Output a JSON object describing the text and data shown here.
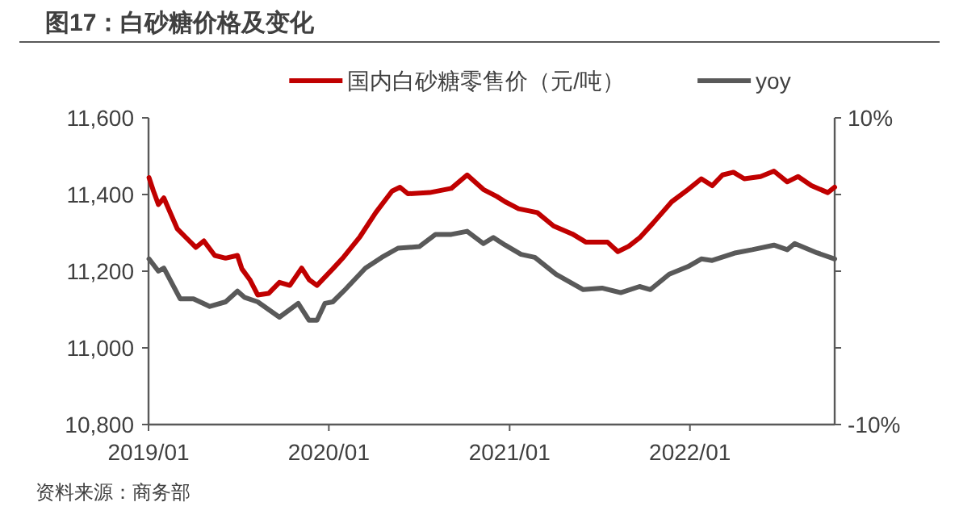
{
  "chart_data": {
    "type": "line",
    "title": "图17：白砂糖价格及变化",
    "annotations": [
      "资料来源：商务部"
    ],
    "legend": "top",
    "xlim": [
      "2019-01-01",
      "2022-10-21"
    ],
    "xticks": [
      {
        "value": "2019-01-01",
        "label": "2019/01"
      },
      {
        "value": "2020-01-01",
        "label": "2020/01"
      },
      {
        "value": "2021-01-01",
        "label": "2021/01"
      },
      {
        "value": "2022-01-01",
        "label": "2022/01"
      }
    ],
    "ylim": [
      10800,
      11600
    ],
    "yticks": [
      {
        "value": 10800,
        "label": "10,800"
      },
      {
        "value": 11000,
        "label": "11,000"
      },
      {
        "value": 11200,
        "label": "11,200"
      },
      {
        "value": 11400,
        "label": "11,400"
      },
      {
        "value": 11600,
        "label": "11,600"
      }
    ],
    "y2lim": [
      -10,
      10
    ],
    "y2ticks": [
      {
        "value": -10,
        "label": "-10%"
      },
      {
        "value": -5,
        "label": null
      },
      {
        "value": 0,
        "label": null
      },
      {
        "value": 5,
        "label": null
      },
      {
        "value": 10,
        "label": "10%"
      }
    ],
    "series": [
      {
        "name": "国内白砂糖零售价（元/吨）",
        "color": "#c00000",
        "x": [
          "2019-01-02",
          "2019-01-11",
          "2019-01-21",
          "2019-02-01",
          "2019-02-28",
          "2019-03-16",
          "2019-04-07",
          "2019-04-23",
          "2019-05-15",
          "2019-06-06",
          "2019-06-30",
          "2019-07-09",
          "2019-07-25",
          "2019-08-10",
          "2019-09-01",
          "2019-09-23",
          "2019-10-14",
          "2019-11-07",
          "2019-11-22",
          "2019-12-08",
          "2020-01-09",
          "2020-01-31",
          "2020-03-04",
          "2020-04-05",
          "2020-05-08",
          "2020-05-24",
          "2020-06-09",
          "2020-07-23",
          "2020-09-05",
          "2020-10-07",
          "2020-11-09",
          "2020-12-06",
          "2020-12-23",
          "2021-01-19",
          "2021-02-26",
          "2021-03-31",
          "2021-05-08",
          "2021-06-04",
          "2021-07-18",
          "2021-08-08",
          "2021-08-30",
          "2021-09-21",
          "2021-10-18",
          "2021-11-25",
          "2021-12-28",
          "2022-01-24",
          "2022-02-15",
          "2022-03-08",
          "2022-03-30",
          "2022-04-21",
          "2022-05-24",
          "2022-06-20",
          "2022-07-17",
          "2022-08-08",
          "2022-09-04",
          "2022-10-07",
          "2022-10-21"
        ],
        "values": [
          11444,
          11409,
          11374,
          11391,
          11311,
          11290,
          11262,
          11279,
          11241,
          11234,
          11241,
          11206,
          11178,
          11138,
          11142,
          11171,
          11163,
          11208,
          11178,
          11163,
          11206,
          11237,
          11290,
          11353,
          11409,
          11419,
          11402,
          11405,
          11416,
          11451,
          11413,
          11395,
          11381,
          11363,
          11353,
          11318,
          11297,
          11276,
          11276,
          11251,
          11265,
          11287,
          11325,
          11381,
          11413,
          11441,
          11423,
          11451,
          11458,
          11441,
          11447,
          11461,
          11433,
          11447,
          11423,
          11405,
          11419
        ]
      },
      {
        "name": "yoy",
        "color": "#595959",
        "axis": "y2",
        "x": [
          "2019-01-02",
          "2019-01-21",
          "2019-02-01",
          "2019-03-06",
          "2019-04-02",
          "2019-05-05",
          "2019-06-06",
          "2019-06-30",
          "2019-07-14",
          "2019-08-10",
          "2019-09-23",
          "2019-10-31",
          "2019-11-22",
          "2019-12-08",
          "2019-12-24",
          "2020-01-09",
          "2020-01-31",
          "2020-03-15",
          "2020-04-17",
          "2020-05-20",
          "2020-07-02",
          "2020-08-04",
          "2020-09-05",
          "2020-10-07",
          "2020-11-09",
          "2020-11-29",
          "2020-12-23",
          "2021-01-24",
          "2021-02-21",
          "2021-04-05",
          "2021-05-30",
          "2021-07-07",
          "2021-08-14",
          "2021-09-21",
          "2021-10-13",
          "2021-11-20",
          "2021-12-28",
          "2022-01-24",
          "2022-02-15",
          "2022-04-04",
          "2022-05-07",
          "2022-06-20",
          "2022-07-17",
          "2022-08-01",
          "2022-09-15",
          "2022-10-21"
        ],
        "values": [
          0.8,
          0.0,
          0.2,
          -1.8,
          -1.8,
          -2.3,
          -2.0,
          -1.3,
          -1.7,
          -2.0,
          -3.0,
          -2.1,
          -3.2,
          -3.2,
          -2.1,
          -2.0,
          -1.3,
          0.2,
          0.9,
          1.5,
          1.6,
          2.4,
          2.4,
          2.6,
          1.8,
          2.2,
          1.7,
          1.1,
          0.9,
          -0.2,
          -1.2,
          -1.1,
          -1.4,
          -1.0,
          -1.2,
          -0.2,
          0.3,
          0.8,
          0.7,
          1.2,
          1.4,
          1.7,
          1.4,
          1.8,
          1.2,
          0.8
        ]
      }
    ]
  }
}
